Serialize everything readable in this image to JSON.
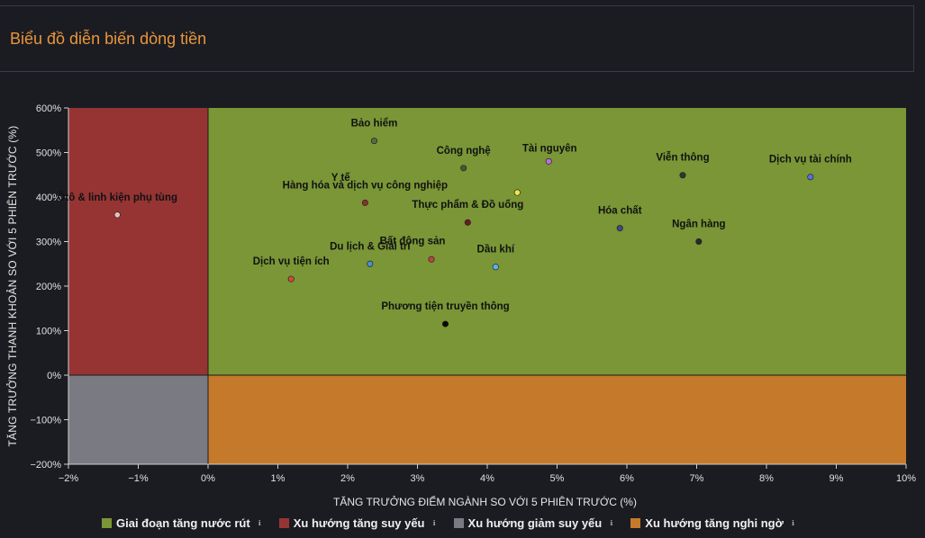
{
  "title": "Biểu đồ diễn biến dòng tiền",
  "chart_data": {
    "type": "scatter",
    "xlabel": "TĂNG TRƯỞNG ĐIỂM NGÀNH SO VỚI 5 PHIÊN TRƯỚC (%)",
    "ylabel": "TĂNG TRƯỞNG THANH KHOẢN SO VỚI 5 PHIÊN TRƯỚC (%)",
    "xlim": [
      -2,
      10
    ],
    "ylim": [
      -200,
      600
    ],
    "xticks": [
      -2,
      -1,
      0,
      1,
      2,
      3,
      4,
      5,
      6,
      7,
      8,
      9,
      10
    ],
    "xtick_labels": [
      "−2%",
      "−1%",
      "0%",
      "1%",
      "2%",
      "3%",
      "4%",
      "5%",
      "6%",
      "7%",
      "8%",
      "9%",
      "10%"
    ],
    "yticks": [
      -200,
      -100,
      0,
      100,
      200,
      300,
      400,
      500,
      600
    ],
    "ytick_labels": [
      "−200%",
      "−100%",
      "0%",
      "100%",
      "200%",
      "300%",
      "400%",
      "500%",
      "600%"
    ],
    "quadrants": [
      {
        "name": "Giai đoạn tăng nước rút",
        "color": "#7a9636",
        "x_sign": "pos",
        "y_sign": "pos"
      },
      {
        "name": "Xu hướng tăng suy yếu",
        "color": "#963434",
        "x_sign": "neg",
        "y_sign": "pos"
      },
      {
        "name": "Xu hướng giảm suy yếu",
        "color": "#7a7b82",
        "x_sign": "neg",
        "y_sign": "neg"
      },
      {
        "name": "Xu hướng tăng nghi ngờ",
        "color": "#c47a2a",
        "x_sign": "pos",
        "y_sign": "neg"
      }
    ],
    "points": [
      {
        "label": "Bảo hiểm",
        "x": 2.38,
        "y": 526,
        "color": "#5a6b45",
        "label_pos": "above"
      },
      {
        "label": "Công nghệ",
        "x": 3.66,
        "y": 465,
        "color": "#3f5a35",
        "label_pos": "above"
      },
      {
        "label": "Tài nguyên",
        "x": 4.88,
        "y": 480,
        "color": "#b76fdb",
        "label_pos": "above-right"
      },
      {
        "label": "Viễn thông",
        "x": 6.8,
        "y": 449,
        "color": "#2a3a2a",
        "label_pos": "above"
      },
      {
        "label": "Dịch vụ tài chính",
        "x": 8.63,
        "y": 445,
        "color": "#5a6fe0",
        "label_pos": "above"
      },
      {
        "label": "Y tế",
        "x": 4.43,
        "y": 410,
        "color": "#f0e84a",
        "label_pos": "custom-yte"
      },
      {
        "label": "Hàng hóa và dịch vụ công nghiệp",
        "x": 2.25,
        "y": 387,
        "color": "#8a3030",
        "label_pos": "above"
      },
      {
        "label": "Thực phẩm & Đồ uống",
        "x": 3.72,
        "y": 343,
        "color": "#6a1a2a",
        "label_pos": "above"
      },
      {
        "label": "Hóa chất",
        "x": 5.9,
        "y": 330,
        "color": "#3a4a8a",
        "label_pos": "above"
      },
      {
        "label": "Ngân hàng",
        "x": 7.03,
        "y": 300,
        "color": "#2a2a2a",
        "label_pos": "above"
      },
      {
        "label": "Bất động sản",
        "x": 3.2,
        "y": 260,
        "color": "#c0404a",
        "label_pos": "custom-bds"
      },
      {
        "label": "Du lịch & Giải trí",
        "x": 2.32,
        "y": 250,
        "color": "#4a90d0",
        "label_pos": "above"
      },
      {
        "label": "Dầu khí",
        "x": 4.12,
        "y": 243,
        "color": "#60b0f0",
        "label_pos": "above"
      },
      {
        "label": "Dịch vụ tiện ích",
        "x": 1.19,
        "y": 216,
        "color": "#d04a3a",
        "label_pos": "above"
      },
      {
        "label": "Phương tiện truyền thông",
        "x": 3.4,
        "y": 115,
        "color": "#0a0a0a",
        "label_pos": "above"
      },
      {
        "label": "Ôtô & linh kiện phụ tùng",
        "x": -1.3,
        "y": 360,
        "color": "#e8c0b8",
        "label_pos": "above"
      }
    ]
  },
  "legend": [
    {
      "label": "Giai đoạn tăng nước rút",
      "color": "#7a9636",
      "info": "ℹ"
    },
    {
      "label": "Xu hướng tăng suy yếu",
      "color": "#963434",
      "info": "ℹ"
    },
    {
      "label": "Xu hướng giảm suy yếu",
      "color": "#7a7b82",
      "info": "ℹ"
    },
    {
      "label": "Xu hướng tăng nghi ngờ",
      "color": "#c47a2a",
      "info": "ℹ"
    }
  ]
}
